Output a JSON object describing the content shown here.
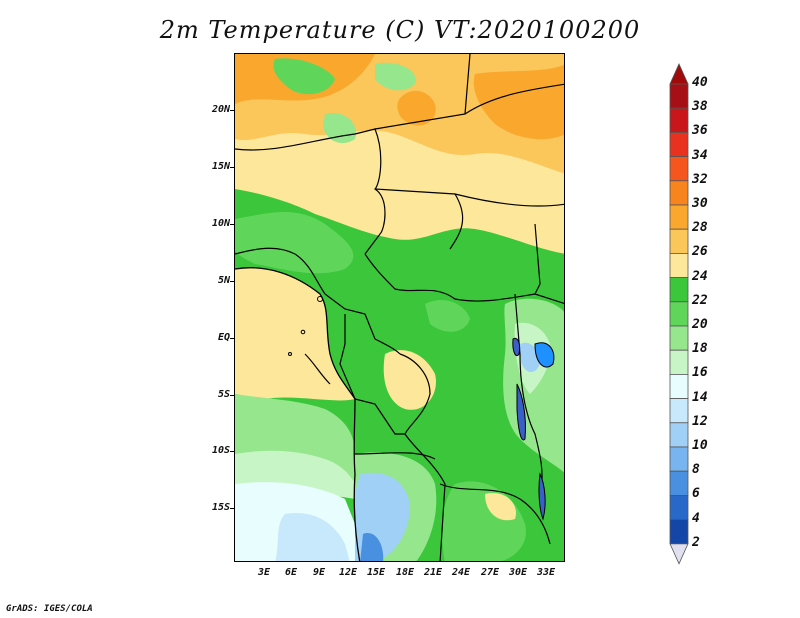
{
  "title": "2m Temperature (C) VT:2020100200",
  "credit": "GrADS: IGES/COLA",
  "map": {
    "lat_labels": [
      "20N",
      "15N",
      "10N",
      "5N",
      "EQ",
      "5S",
      "10S",
      "15S"
    ],
    "lon_labels": [
      "3E",
      "6E",
      "9E",
      "12E",
      "15E",
      "18E",
      "21E",
      "24E",
      "27E",
      "30E",
      "33E"
    ]
  },
  "colorbar": {
    "labels": [
      "40",
      "38",
      "36",
      "34",
      "32",
      "30",
      "28",
      "26",
      "24",
      "22",
      "20",
      "18",
      "16",
      "14",
      "12",
      "10",
      "8",
      "6",
      "4",
      "2"
    ],
    "colors": [
      "#a50f15",
      "#c8161a",
      "#e8321f",
      "#f5561e",
      "#f7841c",
      "#f9a82d",
      "#fbc65a",
      "#fde79a",
      "#3cc63c",
      "#5fd65a",
      "#96e68e",
      "#c8f5c6",
      "#e8fdfd",
      "#c8e8fb",
      "#a0d0f5",
      "#78b4ef",
      "#4a90e0",
      "#2868c8",
      "#1446a8",
      "#0a1e78"
    ],
    "over_color": "#a00a0a",
    "under_color": "#e0e0f0"
  }
}
